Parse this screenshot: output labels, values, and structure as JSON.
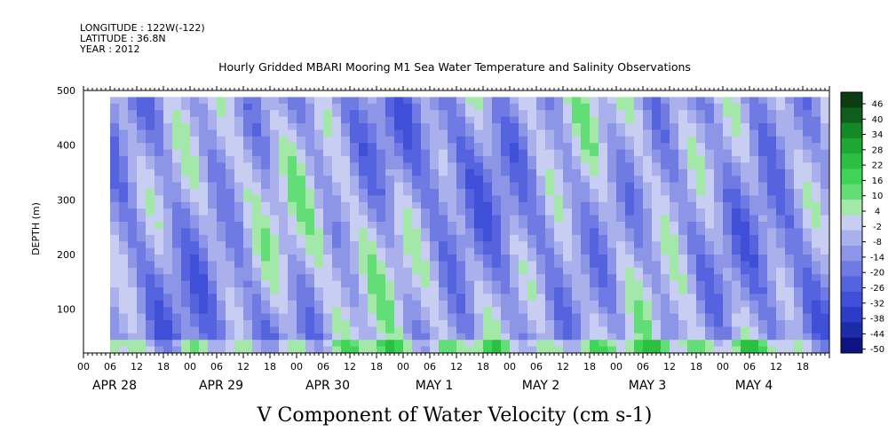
{
  "header": {
    "longitude": "LONGITUDE : 122W(-122)",
    "latitude": "LATITUDE : 36.8N",
    "year": "YEAR : 2012",
    "title": "Hourly Gridded MBARI Mooring M1 Sea Water Temperature and Salinity Observations"
  },
  "chart_data": {
    "type": "heatmap",
    "title": "Hourly Gridded MBARI Mooring M1 Sea Water Temperature and Salinity Observations",
    "variable_label": "V Component of Water Velocity (cm s-1)",
    "ylabel": "DEPTH (m)",
    "y_ticks": [
      "100",
      "200",
      "300",
      "400",
      "500"
    ],
    "y_tick_values": [
      100,
      200,
      300,
      400,
      500
    ],
    "ylim": [
      500,
      20
    ],
    "y_inverted": true,
    "x_hour_labels": [
      "00",
      "06",
      "12",
      "18",
      "00",
      "06",
      "12",
      "18",
      "00",
      "06",
      "12",
      "18",
      "00",
      "06",
      "12",
      "18",
      "00",
      "06",
      "12",
      "18",
      "00",
      "06",
      "12",
      "18",
      "00",
      "06",
      "12",
      "18"
    ],
    "x_day_labels": [
      "APR 28",
      "APR 29",
      "APR 30",
      "MAY  1",
      "MAY  2",
      "MAY  3",
      "MAY  4"
    ],
    "x_range_hours": [
      0,
      168
    ],
    "colorbar_levels": [
      "46",
      "40",
      "34",
      "28",
      "22",
      "16",
      "10",
      "4",
      "-2",
      "-8",
      "-14",
      "-20",
      "-26",
      "-32",
      "-38",
      "-44",
      "-50"
    ],
    "colorbar_colors": [
      "#0a3d12",
      "#0e5f1c",
      "#138a26",
      "#1ea833",
      "#2cc043",
      "#3fd357",
      "#63de76",
      "#a3e8a9",
      "#c8cdf2",
      "#aab0ec",
      "#8c95e6",
      "#6f7be2",
      "#5563de",
      "#3f4fd8",
      "#2b3cc8",
      "#1c2ba8",
      "#0d1380"
    ],
    "dominant_pattern": "mostly negative (blue) velocities with diagonal bands of positive (green) values, near-surface green band",
    "grid": false
  }
}
